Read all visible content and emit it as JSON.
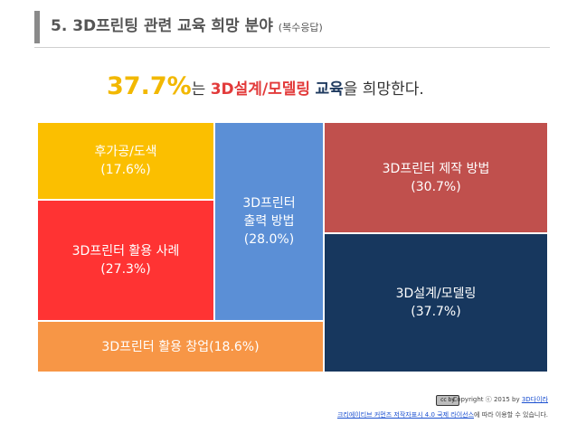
{
  "header": {
    "title": "5. 3D프린팅 관련 교육 희망 분야",
    "subtitle": "(복수응답)"
  },
  "headline": {
    "percent": "37.7%",
    "particle": "는",
    "topic": "3D설계/모델링",
    "word_education": "교육",
    "rest": "을 희망한다."
  },
  "chart_data": {
    "type": "treemap",
    "title": "",
    "items": [
      {
        "label": "후가공/도색",
        "value": 17.6,
        "display": "후가공/도색\n(17.6%)",
        "color": "#fbbf00"
      },
      {
        "label": "3D프린터 활용 사례",
        "value": 27.3,
        "display": "3D프린터 활용 사례\n(27.3%)",
        "color": "#ff3333"
      },
      {
        "label": "3D프린터 출력 방법",
        "value": 28.0,
        "display": "3D프린터\n출력 방법\n(28.0%)",
        "color": "#5b8fd6"
      },
      {
        "label": "3D프린터 제작 방법",
        "value": 30.7,
        "display": "3D프린터 제작 방법\n(30.7%)",
        "color": "#c0504d"
      },
      {
        "label": "3D설계/모델링",
        "value": 37.7,
        "display": "3D설계/모델링\n(37.7%)",
        "color": "#17375e"
      },
      {
        "label": "3D프린터 활용 창업",
        "value": 18.6,
        "display": "3D프린터 활용 창업(18.6%)",
        "color": "#f79646"
      }
    ]
  },
  "footer": {
    "cc_badge": "cc by",
    "copyright_prefix": "Copyright ⓒ 2015 by ",
    "copyright_link": "3D다이라",
    "license_link": "크리에이티브 커먼즈 저작자표시 4.0 국제 라이선스",
    "license_suffix": "에 따라 이용할 수 있습니다."
  }
}
